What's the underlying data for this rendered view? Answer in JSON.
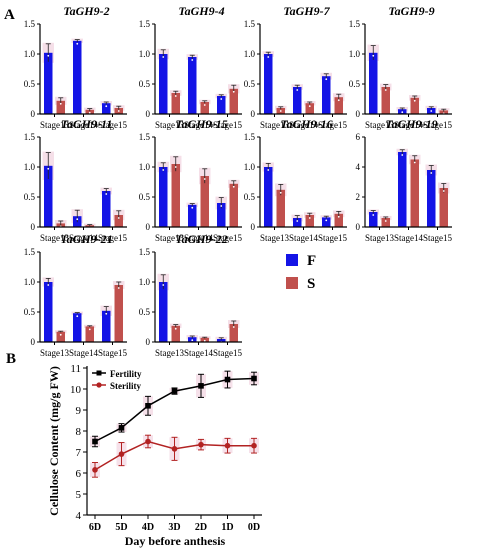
{
  "panels": [
    {
      "letter": "A"
    },
    {
      "letter": "B"
    }
  ],
  "legend_a": {
    "items": [
      {
        "label": "F",
        "color": "#1414e6"
      },
      {
        "label": "S",
        "color": "#c0504d"
      }
    ]
  },
  "colors": {
    "fertile": "#1414e6",
    "sterile": "#c0504d",
    "fertility_line": "#000000",
    "sterility_line": "#b22222",
    "error_bg": "#f4dce6"
  },
  "chart_data": [
    {
      "type": "bar",
      "title": "TaGH9-2",
      "categories": [
        "Stage13",
        "Stage14",
        "Stage15"
      ],
      "ylim": [
        0,
        1.5
      ],
      "yticks": [
        "0",
        "0.5",
        "1.0",
        "1.5"
      ],
      "series": [
        {
          "name": "F",
          "values": [
            1.02,
            1.22,
            0.18
          ],
          "errors": [
            0.15,
            0.02,
            0.02
          ]
        },
        {
          "name": "S",
          "values": [
            0.22,
            0.07,
            0.1
          ],
          "errors": [
            0.05,
            0.02,
            0.03
          ]
        }
      ]
    },
    {
      "type": "bar",
      "title": "TaGH9-4",
      "categories": [
        "Stage13",
        "Stage14",
        "Stage15"
      ],
      "ylim": [
        0,
        1.5
      ],
      "yticks": [
        "0",
        "0.5",
        "1.0",
        "1.5"
      ],
      "series": [
        {
          "name": "F",
          "values": [
            1.0,
            0.95,
            0.3
          ],
          "errors": [
            0.07,
            0.03,
            0.02
          ]
        },
        {
          "name": "S",
          "values": [
            0.35,
            0.2,
            0.42
          ],
          "errors": [
            0.03,
            0.02,
            0.06
          ]
        }
      ]
    },
    {
      "type": "bar",
      "title": "TaGH9-7",
      "categories": [
        "Stage13",
        "Stage14",
        "Stage15"
      ],
      "ylim": [
        0,
        1.5
      ],
      "yticks": [
        "0",
        "0.5",
        "1.0",
        "1.5"
      ],
      "series": [
        {
          "name": "F",
          "values": [
            1.0,
            0.45,
            0.63
          ],
          "errors": [
            0.03,
            0.03,
            0.04
          ]
        },
        {
          "name": "S",
          "values": [
            0.1,
            0.18,
            0.28
          ],
          "errors": [
            0.02,
            0.02,
            0.05
          ]
        }
      ]
    },
    {
      "type": "bar",
      "title": "TaGH9-9",
      "categories": [
        "Stage13",
        "Stage14",
        "Stage15"
      ],
      "ylim": [
        0,
        1.5
      ],
      "yticks": [
        "0",
        "0.5",
        "1.0",
        "1.5"
      ],
      "series": [
        {
          "name": "F",
          "values": [
            1.02,
            0.08,
            0.1
          ],
          "errors": [
            0.12,
            0.02,
            0.02
          ]
        },
        {
          "name": "S",
          "values": [
            0.45,
            0.27,
            0.06
          ],
          "errors": [
            0.04,
            0.03,
            0.02
          ]
        }
      ]
    },
    {
      "type": "bar",
      "title": "TaGH9-11",
      "categories": [
        "Stage13",
        "Stage14",
        "Stage15"
      ],
      "ylim": [
        0,
        1.5
      ],
      "yticks": [
        "0",
        "0.5",
        "1.0",
        "1.5"
      ],
      "series": [
        {
          "name": "F",
          "values": [
            1.02,
            0.18,
            0.6
          ],
          "errors": [
            0.22,
            0.1,
            0.04
          ]
        },
        {
          "name": "S",
          "values": [
            0.06,
            0.03,
            0.2
          ],
          "errors": [
            0.04,
            0.01,
            0.07
          ]
        }
      ]
    },
    {
      "type": "bar",
      "title": "TaGH9-15",
      "categories": [
        "Stage13",
        "Stage14",
        "Stage15"
      ],
      "ylim": [
        0,
        1.5
      ],
      "yticks": [
        "0",
        "0.5",
        "1.0",
        "1.5"
      ],
      "series": [
        {
          "name": "F",
          "values": [
            1.0,
            0.37,
            0.4
          ],
          "errors": [
            0.07,
            0.02,
            0.09
          ]
        },
        {
          "name": "S",
          "values": [
            1.05,
            0.85,
            0.72
          ],
          "errors": [
            0.12,
            0.12,
            0.05
          ]
        }
      ]
    },
    {
      "type": "bar",
      "title": "TaGH9-16",
      "categories": [
        "Stage13",
        "Stage14",
        "Stage15"
      ],
      "ylim": [
        0,
        1.5
      ],
      "yticks": [
        "0",
        "0.5",
        "1.0",
        "1.5"
      ],
      "series": [
        {
          "name": "F",
          "values": [
            1.0,
            0.15,
            0.16
          ],
          "errors": [
            0.06,
            0.04,
            0.02
          ]
        },
        {
          "name": "S",
          "values": [
            0.62,
            0.2,
            0.22
          ],
          "errors": [
            0.09,
            0.03,
            0.04
          ]
        }
      ]
    },
    {
      "type": "bar",
      "title": "TaGH9-19",
      "categories": [
        "Stage13",
        "Stage14",
        "Stage15"
      ],
      "ylim": [
        0,
        6
      ],
      "yticks": [
        "0",
        "2",
        "4",
        "6"
      ],
      "series": [
        {
          "name": "F",
          "values": [
            1.0,
            5.0,
            3.8
          ],
          "errors": [
            0.1,
            0.15,
            0.3
          ]
        },
        {
          "name": "S",
          "values": [
            0.6,
            4.5,
            2.6
          ],
          "errors": [
            0.07,
            0.25,
            0.3
          ]
        }
      ]
    },
    {
      "type": "bar",
      "title": "TaGH9-21",
      "categories": [
        "Stage13",
        "Stage14",
        "Stage15"
      ],
      "ylim": [
        0,
        1.5
      ],
      "yticks": [
        "0",
        "0.5",
        "1.0",
        "1.5"
      ],
      "series": [
        {
          "name": "F",
          "values": [
            1.0,
            0.48,
            0.52
          ],
          "errors": [
            0.06,
            0.01,
            0.07
          ]
        },
        {
          "name": "S",
          "values": [
            0.17,
            0.26,
            0.95
          ],
          "errors": [
            0.01,
            0.01,
            0.05
          ]
        }
      ]
    },
    {
      "type": "bar",
      "title": "TaGH9-22",
      "categories": [
        "Stage13",
        "Stage14",
        "Stage15"
      ],
      "ylim": [
        0,
        1.5
      ],
      "yticks": [
        "0",
        "0.5",
        "1.0",
        "1.5"
      ],
      "series": [
        {
          "name": "F",
          "values": [
            1.0,
            0.08,
            0.05
          ],
          "errors": [
            0.12,
            0.02,
            0.02
          ]
        },
        {
          "name": "S",
          "values": [
            0.27,
            0.07,
            0.3
          ],
          "errors": [
            0.02,
            0.01,
            0.05
          ]
        }
      ]
    },
    {
      "type": "line",
      "categories": [
        "6D",
        "5D",
        "4D",
        "3D",
        "2D",
        "1D",
        "0D"
      ],
      "xlabel": "Day before anthesis",
      "ylabel": "Cellulose Content (mg/g  FW)",
      "ylim": [
        4,
        11
      ],
      "yticks": [
        "4",
        "5",
        "6",
        "7",
        "8",
        "9",
        "10",
        "11"
      ],
      "legend_position": "top-left",
      "series": [
        {
          "name": "Fertility",
          "values": [
            7.5,
            8.15,
            9.2,
            9.9,
            10.15,
            10.45,
            10.5
          ],
          "errors": [
            0.25,
            0.2,
            0.45,
            0.15,
            0.55,
            0.4,
            0.3
          ]
        },
        {
          "name": "Sterility",
          "values": [
            6.15,
            6.9,
            7.5,
            7.15,
            7.35,
            7.3,
            7.3
          ],
          "errors": [
            0.35,
            0.55,
            0.3,
            0.55,
            0.25,
            0.35,
            0.35
          ]
        }
      ]
    }
  ]
}
